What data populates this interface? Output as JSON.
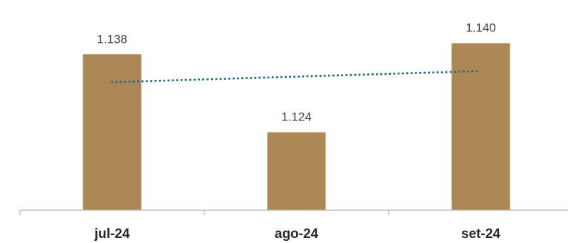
{
  "chart_data": {
    "type": "bar",
    "categories": [
      "jul-24",
      "ago-24",
      "set-24"
    ],
    "values": [
      1138,
      1124,
      1140
    ],
    "value_labels": [
      "1.138",
      "1.124",
      "1.140"
    ],
    "title": "",
    "xlabel": "",
    "ylabel": "",
    "ylim": [
      1110,
      1142
    ],
    "grid": false,
    "legend": "none",
    "trendline": {
      "type": "linear",
      "style": "dotted"
    },
    "colors": {
      "bar": "#AD8855",
      "trendline": "#1F6E8C",
      "axis": "#BFBFBF",
      "value_label": "#404040",
      "tick_label": "#262626"
    }
  }
}
